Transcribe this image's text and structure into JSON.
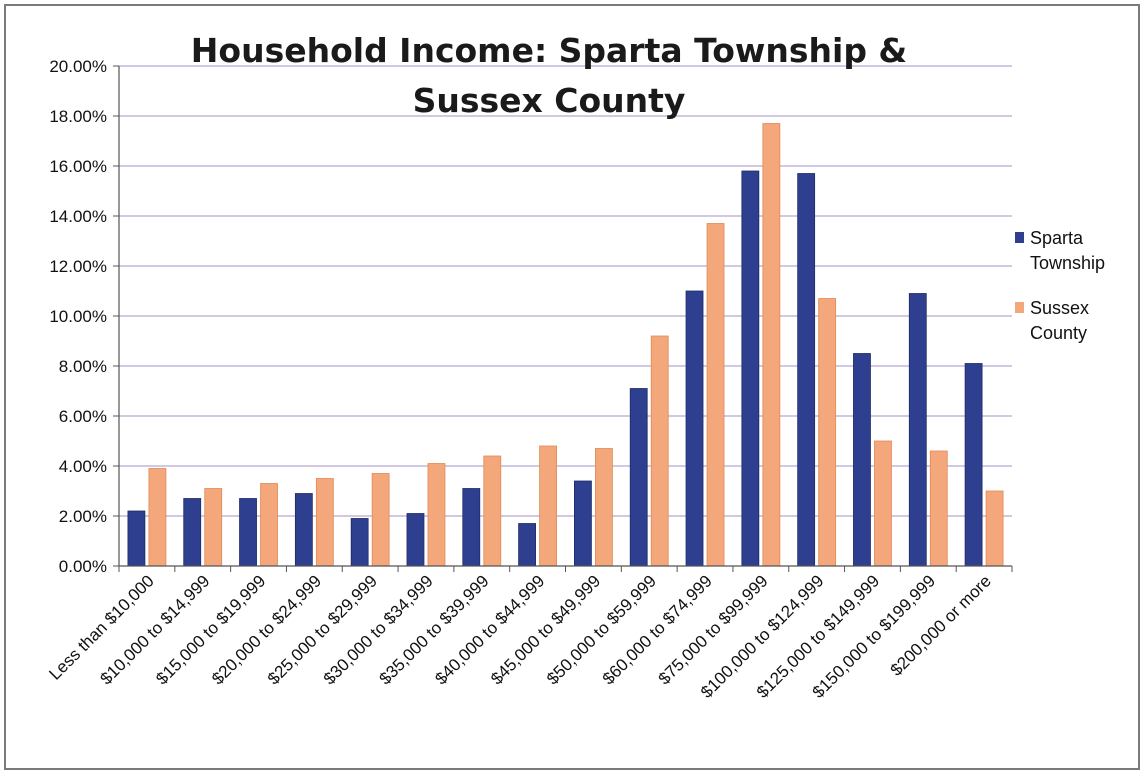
{
  "chart_data": {
    "type": "bar",
    "title_lines": [
      "Household Income: Sparta Township &",
      "Sussex County"
    ],
    "xlabel": "",
    "ylabel": "",
    "ylim": [
      0,
      20
    ],
    "y_ticks": [
      "0.00%",
      "2.00%",
      "4.00%",
      "6.00%",
      "8.00%",
      "10.00%",
      "12.00%",
      "14.00%",
      "16.00%",
      "18.00%",
      "20.00%"
    ],
    "grid": true,
    "legend_position": "right",
    "categories": [
      "Less than $10,000",
      "$10,000 to $14,999",
      "$15,000 to $19,999",
      "$20,000 to $24,999",
      "$25,000 to $29,999",
      "$30,000 to $34,999",
      "$35,000 to $39,999",
      "$40,000 to $44,999",
      "$45,000 to $49,999",
      "$50,000 to $59,999",
      "$60,000 to $74,999",
      "$75,000 to $99,999",
      "$100,000 to $124,999",
      "$125,000 to $149,999",
      "$150,000 to $199,999",
      "$200,000 or more"
    ],
    "series": [
      {
        "name_lines": [
          "Sparta",
          "Township"
        ],
        "color": "#2e3f8f",
        "values": [
          2.2,
          2.7,
          2.7,
          2.9,
          1.9,
          2.1,
          3.1,
          1.7,
          3.4,
          7.1,
          11.0,
          15.8,
          15.7,
          8.5,
          10.9,
          8.1
        ]
      },
      {
        "name_lines": [
          "Sussex",
          "County"
        ],
        "color": "#f4a77b",
        "values": [
          3.9,
          3.1,
          3.3,
          3.5,
          3.7,
          4.1,
          4.4,
          4.8,
          4.7,
          9.2,
          13.7,
          17.7,
          10.7,
          5.0,
          4.6,
          3.0
        ]
      }
    ]
  }
}
